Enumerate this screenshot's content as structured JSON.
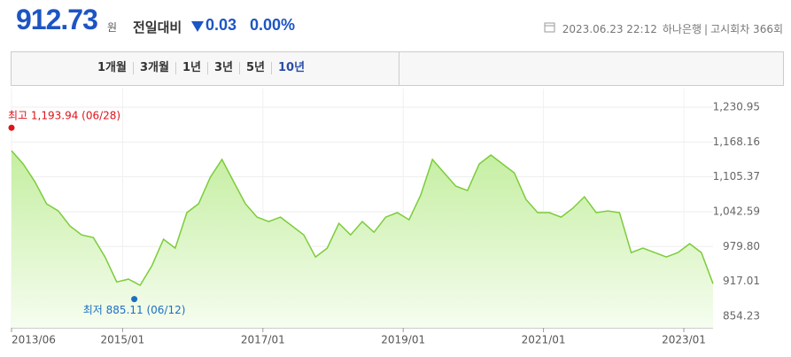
{
  "header": {
    "price": "912.73",
    "unit": "원",
    "change_label": "전일대비",
    "change": "0.03",
    "change_pct": "0.00%",
    "date": "2023.06.23 22:12",
    "bank": "하나은행",
    "round": "고시회차 366회"
  },
  "tabs": [
    "1개월",
    "3개월",
    "1년",
    "3년",
    "5년",
    "10년"
  ],
  "chart_data": {
    "type": "area",
    "color": "#7ccc3a",
    "x": [
      "2013/06",
      "2013/08",
      "2013/10",
      "2013/12",
      "2014/02",
      "2014/04",
      "2014/06",
      "2014/08",
      "2014/10",
      "2014/12",
      "2015/02",
      "2015/04",
      "2015/06",
      "2015/08",
      "2015/10",
      "2015/12",
      "2016/02",
      "2016/04",
      "2016/06",
      "2016/08",
      "2016/10",
      "2016/12",
      "2017/02",
      "2017/04",
      "2017/06",
      "2017/08",
      "2017/10",
      "2017/12",
      "2018/02",
      "2018/04",
      "2018/06",
      "2018/08",
      "2018/10",
      "2018/12",
      "2019/02",
      "2019/04",
      "2019/06",
      "2019/08",
      "2019/10",
      "2019/12",
      "2020/02",
      "2020/04",
      "2020/06",
      "2020/08",
      "2020/10",
      "2020/12",
      "2021/02",
      "2021/04",
      "2021/06",
      "2021/08",
      "2021/10",
      "2021/12",
      "2022/02",
      "2022/04",
      "2022/06",
      "2022/08",
      "2022/10",
      "2022/12",
      "2023/02",
      "2023/04",
      "2023/06"
    ],
    "values": [
      1152.6,
      1128.7,
      1096.7,
      1056.8,
      1044,
      1016.8,
      1000.8,
      996,
      961,
      916,
      921,
      910,
      945,
      993,
      977,
      1041,
      1057,
      1104.7,
      1136.7,
      1096.7,
      1057,
      1032.8,
      1024.8,
      1032.8,
      1016.8,
      1000.8,
      961,
      977,
      1021.6,
      1000.8,
      1024.8,
      1005.6,
      1032.8,
      1041,
      1028,
      1072.7,
      1136.7,
      1112.7,
      1088.7,
      1080.7,
      1128.7,
      1144.7,
      1128.7,
      1112.7,
      1064.8,
      1041,
      1041,
      1032.8,
      1048.8,
      1069.5,
      1041,
      1044,
      1041,
      968.9,
      977,
      968.9,
      961,
      968.9,
      985,
      968.9,
      912.73
    ],
    "ylim": [
      833.4,
      1264.5
    ],
    "yticks": [
      {
        "value": 1230.95,
        "label": "1,230.95"
      },
      {
        "value": 1168.16,
        "label": "1,168.16"
      },
      {
        "value": 1105.37,
        "label": "1,105.37"
      },
      {
        "value": 1042.59,
        "label": "1,042.59"
      },
      {
        "value": 979.8,
        "label": "979.80"
      },
      917.01,
      854.23
    ],
    "xticks": [
      "2013/06",
      "2015/01",
      "2017/01",
      "2019/01",
      "2021/01",
      "2023/01"
    ],
    "annotations": [
      {
        "label": "최고 1,193.94 (06/28)",
        "value": 1193.94,
        "x": "2013/06",
        "color": "#e0131a"
      },
      {
        "label": "최저 885.11 (06/12)",
        "value": 885.11,
        "x": "2015/03",
        "color": "#1d6fc4"
      }
    ]
  }
}
